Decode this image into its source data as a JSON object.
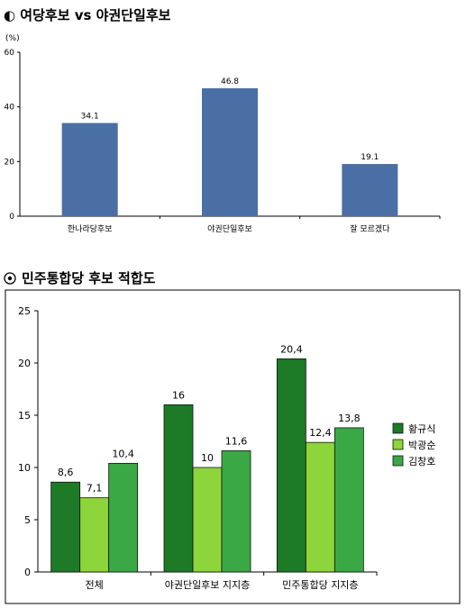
{
  "chart_data": [
    {
      "type": "bar",
      "title": "◐ 여당후보 vs 야권단일후보",
      "unit": "(%)",
      "categories": [
        "한나라당후보",
        "야권단일후보",
        "잘 모르겠다"
      ],
      "values": [
        34.1,
        46.8,
        19.1
      ],
      "value_labels": [
        "34.1",
        "46.8",
        "19.1"
      ],
      "ylim": [
        0,
        60
      ],
      "yticks": [
        "0",
        "20",
        "40",
        "60"
      ],
      "colors": {
        "bar": "#4a6fa5",
        "axis": "#000000"
      },
      "grid": false
    },
    {
      "type": "bar",
      "title": "민주통합당 후보 적합도",
      "categories": [
        "전체",
        "야권단일후보 지지층",
        "민주통합당 지지층"
      ],
      "series": [
        {
          "name": "황규식",
          "values": [
            8.6,
            16,
            20.4
          ],
          "labels": [
            "8,6",
            "16",
            "20,4"
          ],
          "color": "#1d7a27"
        },
        {
          "name": "박광순",
          "values": [
            7.1,
            10,
            12.4
          ],
          "labels": [
            "7,1",
            "10",
            "12,4"
          ],
          "color": "#8ed43b"
        },
        {
          "name": "김창호",
          "values": [
            10.4,
            11.6,
            13.8
          ],
          "labels": [
            "10,4",
            "11,6",
            "13,8"
          ],
          "color": "#3aa845"
        }
      ],
      "ylim": [
        0,
        25
      ],
      "yticks": [
        "0",
        "5",
        "10",
        "15",
        "20",
        "25"
      ],
      "legend": "right",
      "grid": false
    }
  ],
  "icons": {
    "title2": "target-icon"
  }
}
